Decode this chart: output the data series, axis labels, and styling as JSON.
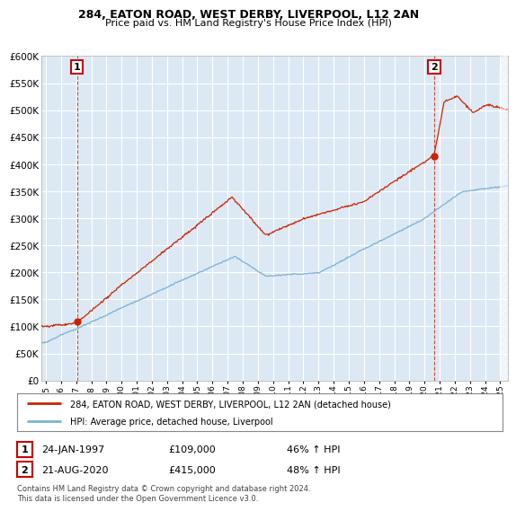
{
  "title1": "284, EATON ROAD, WEST DERBY, LIVERPOOL, L12 2AN",
  "title2": "Price paid vs. HM Land Registry's House Price Index (HPI)",
  "legend_line1": "284, EATON ROAD, WEST DERBY, LIVERPOOL, L12 2AN (detached house)",
  "legend_line2": "HPI: Average price, detached house, Liverpool",
  "annotation1_label": "1",
  "annotation1_date": "24-JAN-1997",
  "annotation1_price": "£109,000",
  "annotation1_hpi": "46% ↑ HPI",
  "annotation2_label": "2",
  "annotation2_date": "21-AUG-2020",
  "annotation2_price": "£415,000",
  "annotation2_hpi": "48% ↑ HPI",
  "footer": "Contains HM Land Registry data © Crown copyright and database right 2024.\nThis data is licensed under the Open Government Licence v3.0.",
  "hpi_color": "#7ab3d4",
  "price_color": "#cc2200",
  "background_color": "#ffffff",
  "plot_bg_color": "#dce9f5",
  "grid_color": "#ffffff",
  "ylim": [
    0,
    600000
  ],
  "yticks": [
    0,
    50000,
    100000,
    150000,
    200000,
    250000,
    300000,
    350000,
    400000,
    450000,
    500000,
    550000,
    600000
  ],
  "xlim_start": 1994.7,
  "xlim_end": 2025.5,
  "xtick_years": [
    1995,
    1996,
    1997,
    1998,
    1999,
    2000,
    2001,
    2002,
    2003,
    2004,
    2005,
    2006,
    2007,
    2008,
    2009,
    2010,
    2011,
    2012,
    2013,
    2014,
    2015,
    2016,
    2017,
    2018,
    2019,
    2020,
    2021,
    2022,
    2023,
    2024,
    2025
  ],
  "sale1_x": 1997.065,
  "sale1_y": 109000,
  "sale2_x": 2020.637,
  "sale2_y": 415000
}
